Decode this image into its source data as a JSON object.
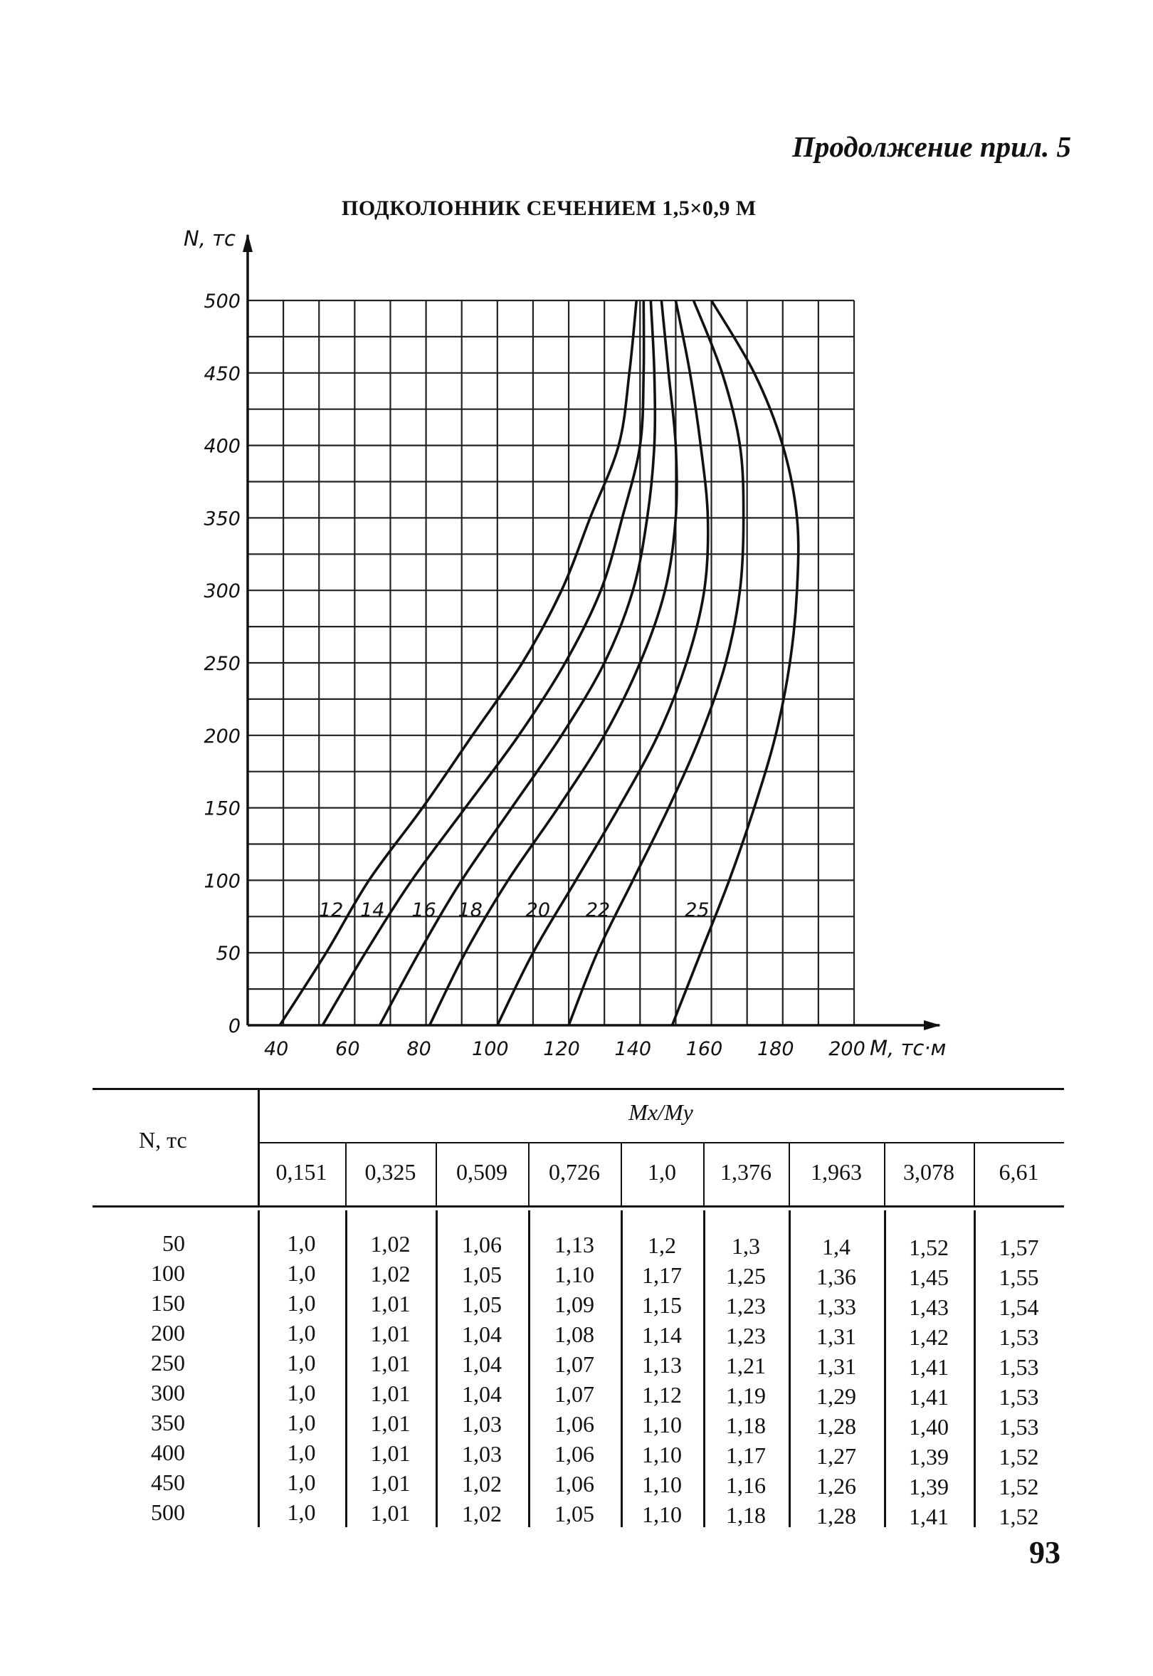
{
  "header_note": "Продолжение прил. 5",
  "page_number": "93",
  "chart_data": {
    "type": "line",
    "title": "ПОДКОЛОННИК СЕЧЕНИЕМ 1,5×0,9 М",
    "xlabel": "M, тс·м",
    "ylabel": "N, тс",
    "xlim": [
      30,
      200
    ],
    "ylim": [
      0,
      500
    ],
    "x_ticks": [
      "40",
      "60",
      "80",
      "100",
      "120",
      "140",
      "160",
      "180",
      "200"
    ],
    "y_ticks": [
      "0",
      "50",
      "100",
      "150",
      "200",
      "250",
      "300",
      "350",
      "400",
      "450",
      "500"
    ],
    "grid": true,
    "series": [
      {
        "name": "12",
        "points": [
          [
            39,
            0
          ],
          [
            52,
            50
          ],
          [
            64,
            100
          ],
          [
            79,
            150
          ],
          [
            93,
            200
          ],
          [
            107,
            250
          ],
          [
            118,
            300
          ],
          [
            126,
            350
          ],
          [
            134,
            400
          ],
          [
            137,
            450
          ],
          [
            139,
            500
          ]
        ]
      },
      {
        "name": "14",
        "points": [
          [
            51,
            0
          ],
          [
            63,
            50
          ],
          [
            76,
            100
          ],
          [
            91,
            150
          ],
          [
            106,
            200
          ],
          [
            119,
            250
          ],
          [
            129,
            300
          ],
          [
            135,
            350
          ],
          [
            140,
            400
          ],
          [
            141,
            450
          ],
          [
            141,
            500
          ]
        ]
      },
      {
        "name": "16",
        "points": [
          [
            67,
            0
          ],
          [
            78,
            50
          ],
          [
            90,
            100
          ],
          [
            104,
            150
          ],
          [
            118,
            200
          ],
          [
            130,
            250
          ],
          [
            138,
            300
          ],
          [
            142,
            350
          ],
          [
            144,
            400
          ],
          [
            144,
            450
          ],
          [
            143,
            500
          ]
        ]
      },
      {
        "name": "18",
        "points": [
          [
            81,
            0
          ],
          [
            91,
            50
          ],
          [
            103,
            100
          ],
          [
            117,
            150
          ],
          [
            130,
            200
          ],
          [
            140,
            250
          ],
          [
            147,
            300
          ],
          [
            150,
            350
          ],
          [
            150,
            400
          ],
          [
            148,
            450
          ],
          [
            146,
            500
          ]
        ]
      },
      {
        "name": "20",
        "points": [
          [
            100,
            0
          ],
          [
            110,
            50
          ],
          [
            122,
            100
          ],
          [
            134,
            150
          ],
          [
            145,
            200
          ],
          [
            153,
            250
          ],
          [
            158,
            300
          ],
          [
            159,
            350
          ],
          [
            157,
            400
          ],
          [
            154,
            450
          ],
          [
            150,
            500
          ]
        ]
      },
      {
        "name": "22",
        "points": [
          [
            120,
            0
          ],
          [
            128,
            50
          ],
          [
            138,
            100
          ],
          [
            148,
            150
          ],
          [
            157,
            200
          ],
          [
            164,
            250
          ],
          [
            168,
            300
          ],
          [
            169,
            350
          ],
          [
            168,
            400
          ],
          [
            163,
            450
          ],
          [
            155,
            500
          ]
        ]
      },
      {
        "name": "25",
        "points": [
          [
            149,
            0
          ],
          [
            157,
            50
          ],
          [
            165,
            100
          ],
          [
            172,
            150
          ],
          [
            178,
            200
          ],
          [
            182,
            250
          ],
          [
            184,
            300
          ],
          [
            184,
            350
          ],
          [
            180,
            400
          ],
          [
            172,
            450
          ],
          [
            160,
            500
          ]
        ]
      }
    ]
  },
  "table": {
    "row_header": "N, тс",
    "col_group_header": "Mx/My",
    "columns": [
      "0,151",
      "0,325",
      "0,509",
      "0,726",
      "1,0",
      "1,376",
      "1,963",
      "3,078",
      "6,61"
    ],
    "rows": [
      {
        "n": "50",
        "values": [
          "1,0",
          "1,02",
          "1,06",
          "1,13",
          "1,2",
          "1,3",
          "1,4",
          "1,52",
          "1,57"
        ]
      },
      {
        "n": "100",
        "values": [
          "1,0",
          "1,02",
          "1,05",
          "1,10",
          "1,17",
          "1,25",
          "1,36",
          "1,45",
          "1,55"
        ]
      },
      {
        "n": "150",
        "values": [
          "1,0",
          "1,01",
          "1,05",
          "1,09",
          "1,15",
          "1,23",
          "1,33",
          "1,43",
          "1,54"
        ]
      },
      {
        "n": "200",
        "values": [
          "1,0",
          "1,01",
          "1,04",
          "1,08",
          "1,14",
          "1,23",
          "1,31",
          "1,42",
          "1,53"
        ]
      },
      {
        "n": "250",
        "values": [
          "1,0",
          "1,01",
          "1,04",
          "1,07",
          "1,13",
          "1,21",
          "1,31",
          "1,41",
          "1,53"
        ]
      },
      {
        "n": "300",
        "values": [
          "1,0",
          "1,01",
          "1,04",
          "1,07",
          "1,12",
          "1,19",
          "1,29",
          "1,41",
          "1,53"
        ]
      },
      {
        "n": "350",
        "values": [
          "1,0",
          "1,01",
          "1,03",
          "1,06",
          "1,10",
          "1,18",
          "1,28",
          "1,40",
          "1,53"
        ]
      },
      {
        "n": "400",
        "values": [
          "1,0",
          "1,01",
          "1,03",
          "1,06",
          "1,10",
          "1,17",
          "1,27",
          "1,39",
          "1,52"
        ]
      },
      {
        "n": "450",
        "values": [
          "1,0",
          "1,01",
          "1,02",
          "1,06",
          "1,10",
          "1,16",
          "1,26",
          "1,39",
          "1,52"
        ]
      },
      {
        "n": "500",
        "values": [
          "1,0",
          "1,01",
          "1,02",
          "1,05",
          "1,10",
          "1,18",
          "1,28",
          "1,41",
          "1,52"
        ]
      }
    ]
  }
}
